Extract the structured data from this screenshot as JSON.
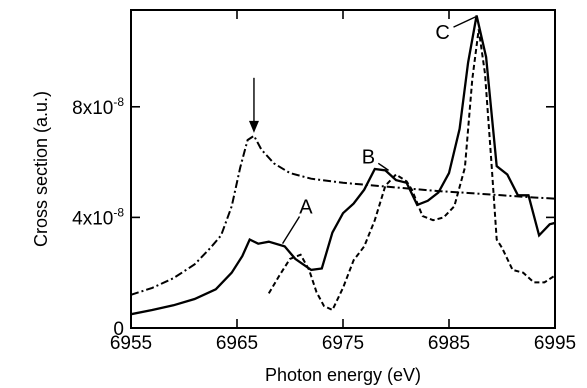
{
  "chart_data": {
    "type": "line",
    "xlabel": "Photon energy (eV)",
    "ylabel": "Cross section (a.u.)",
    "xlim": [
      6955,
      6995
    ],
    "ylim": [
      0,
      1.15e-07
    ],
    "grid": false,
    "x_ticks": [
      {
        "value": 6955,
        "label": "6955"
      },
      {
        "value": 6965,
        "label": "6965"
      },
      {
        "value": 6975,
        "label": "6975"
      },
      {
        "value": 6985,
        "label": "6985"
      },
      {
        "value": 6995,
        "label": "6995"
      }
    ],
    "y_ticks": [
      {
        "value": 0,
        "label": "0",
        "mantissa": "0",
        "exponent": ""
      },
      {
        "value": 4e-08,
        "label": "4x10-8",
        "mantissa": "4x10",
        "exponent": "-8"
      },
      {
        "value": 8e-08,
        "label": "8x10-8",
        "mantissa": "8x10",
        "exponent": "-8"
      }
    ],
    "series": [
      {
        "style": "solid",
        "x": [
          6955,
          6957,
          6959,
          6961,
          6963,
          6964.5,
          6965.5,
          6966.2,
          6967,
          6968,
          6969.5,
          6970.5,
          6972,
          6973,
          6974,
          6975,
          6976,
          6977,
          6978,
          6979,
          6980,
          6981,
          6982,
          6983,
          6984,
          6985,
          6986,
          6986.8,
          6987.6,
          6988.5,
          6989.5,
          6990.5,
          6991.5,
          6992.5,
          6993.5,
          6994.5,
          6995
        ],
        "y": [
          5e-09,
          6.5e-09,
          8.2e-09,
          1.05e-08,
          1.4e-08,
          2e-08,
          2.6e-08,
          3.2e-08,
          3.05e-08,
          3.12e-08,
          2.95e-08,
          2.5e-08,
          2.1e-08,
          2.15e-08,
          3.45e-08,
          4.15e-08,
          4.5e-08,
          5e-08,
          5.75e-08,
          5.7e-08,
          5.35e-08,
          5.25e-08,
          4.45e-08,
          4.6e-08,
          4.9e-08,
          5.6e-08,
          7.2e-08,
          9.6e-08,
          1.13e-07,
          9.8e-08,
          5.85e-08,
          5.55e-08,
          4.8e-08,
          4.8e-08,
          3.35e-08,
          3.75e-08,
          3.8e-08
        ]
      },
      {
        "style": "dashed",
        "x": [
          6968,
          6969,
          6970,
          6971,
          6971.8,
          6972.5,
          6973.2,
          6974,
          6975,
          6976,
          6977,
          6978,
          6979,
          6980,
          6981,
          6981.5,
          6982.5,
          6983.5,
          6984.5,
          6985.5,
          6986.5,
          6987.2,
          6987.8,
          6988.4,
          6989,
          6989.5,
          6990,
          6991,
          6992,
          6993,
          6994,
          6995
        ],
        "y": [
          1.25e-08,
          1.9e-08,
          2.5e-08,
          2.65e-08,
          2.1e-08,
          1.3e-08,
          8e-09,
          6.5e-09,
          1.45e-08,
          2.45e-08,
          2.95e-08,
          3.9e-08,
          5.15e-08,
          5.55e-08,
          5.3e-08,
          5e-08,
          4.05e-08,
          3.9e-08,
          4e-08,
          4.4e-08,
          5.8e-08,
          9e-08,
          1.08e-07,
          9.2e-08,
          6e-08,
          3.2e-08,
          2.9e-08,
          2.1e-08,
          2e-08,
          1.65e-08,
          1.65e-08,
          1.9e-08
        ]
      },
      {
        "style": "dash-dot",
        "x": [
          6955,
          6957,
          6959,
          6961,
          6962.5,
          6963.5,
          6964.5,
          6965.3,
          6966,
          6966.6,
          6967.3,
          6968.5,
          6970,
          6972,
          6975,
          6978,
          6981,
          6984,
          6987,
          6990,
          6993,
          6995
        ],
        "y": [
          1.2e-08,
          1.45e-08,
          1.8e-08,
          2.3e-08,
          2.9e-08,
          3.35e-08,
          4.4e-08,
          5.8e-08,
          6.8e-08,
          6.95e-08,
          6.45e-08,
          5.95e-08,
          5.6e-08,
          5.4e-08,
          5.25e-08,
          5.15e-08,
          5.05e-08,
          4.95e-08,
          4.88e-08,
          4.8e-08,
          4.72e-08,
          4.68e-08
        ]
      }
    ],
    "annotations": [
      {
        "kind": "arrow",
        "x": 6966.6,
        "y": 6.95e-08,
        "text": ""
      },
      {
        "kind": "label",
        "text": "A",
        "label_x": 6971.5,
        "label_y": 4.4e-08,
        "target_x": 6969.3,
        "target_y": 3.05e-08
      },
      {
        "kind": "label",
        "text": "B",
        "label_x": 6977.4,
        "label_y": 6.2e-08,
        "target_x": 6979.3,
        "target_y": 5.7e-08
      },
      {
        "kind": "label",
        "text": "C",
        "label_x": 6984.4,
        "label_y": 1.07e-07,
        "target_x": 6987.5,
        "target_y": 1.125e-07
      }
    ]
  }
}
